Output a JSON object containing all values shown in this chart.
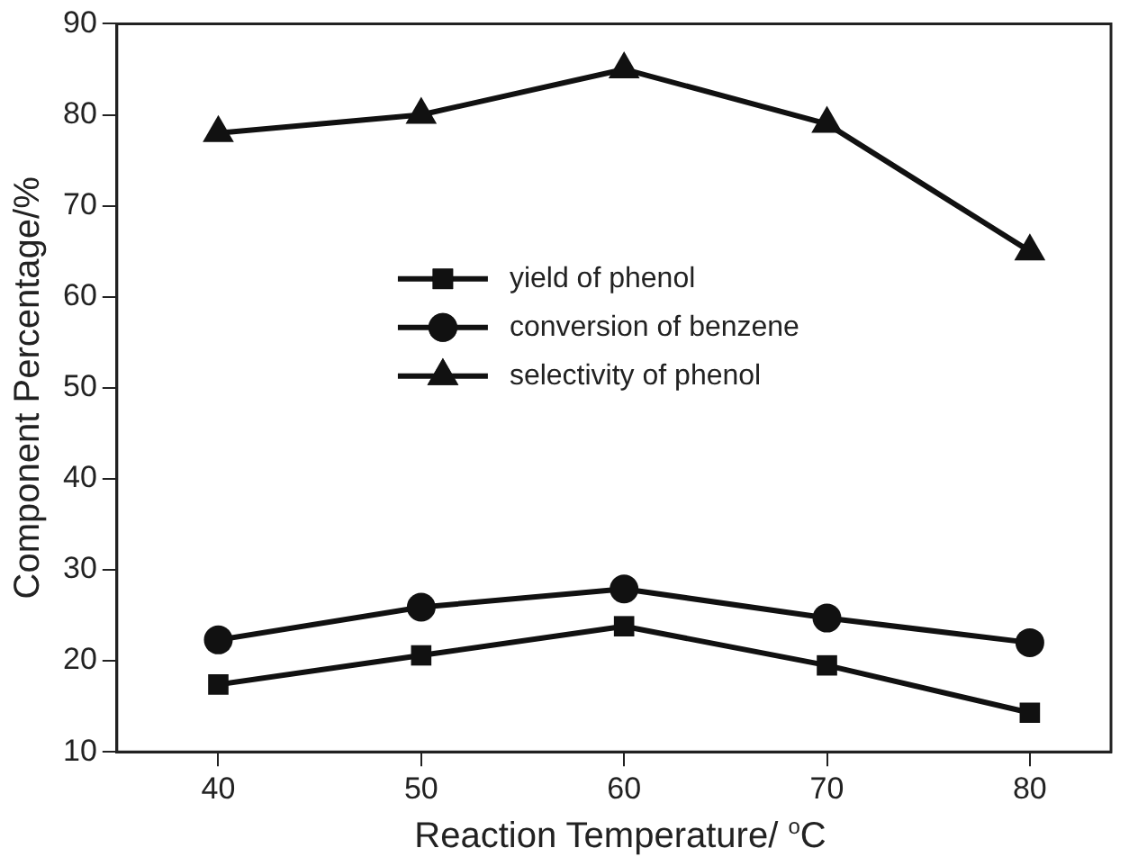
{
  "chart_data": {
    "type": "line",
    "xlabel": "Reaction Temperature/ $^{o}$C",
    "ylabel": "Component Percentage/%",
    "x": [
      40,
      50,
      60,
      70,
      80
    ],
    "series": [
      {
        "name": "yield of phenol",
        "color": "#111111",
        "marker": "square",
        "values": [
          17.4,
          20.6,
          23.8,
          19.5,
          14.3
        ]
      },
      {
        "name": "conversion of benzene",
        "color": "#111111",
        "marker": "circle",
        "values": [
          22.3,
          25.9,
          27.9,
          24.7,
          22.0
        ]
      },
      {
        "name": "selectivity of phenol",
        "color": "#111111",
        "marker": "triangle",
        "values": [
          78,
          80,
          85,
          79,
          65
        ]
      }
    ],
    "xlim": [
      35,
      84
    ],
    "xticks": [
      40,
      50,
      60,
      70,
      80
    ],
    "ylim": [
      10,
      90
    ],
    "yticks": [
      10,
      20,
      30,
      40,
      50,
      60,
      70,
      80,
      90
    ],
    "grid": false,
    "legend": "center",
    "line_style": "solid"
  }
}
